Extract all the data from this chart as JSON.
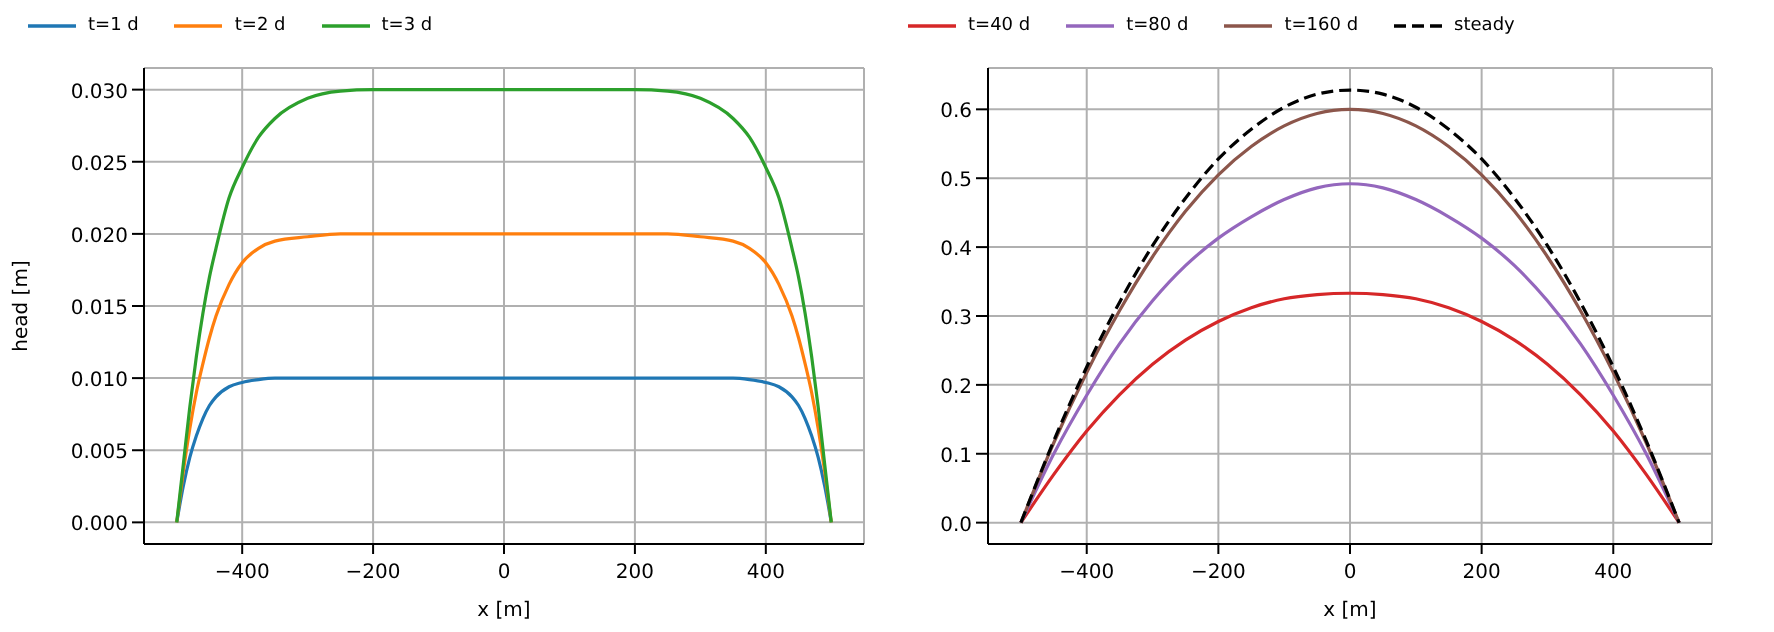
{
  "chart_data": [
    {
      "type": "line",
      "xlabel": "x [m]",
      "ylabel": "head [m]",
      "x": [
        -500,
        -490,
        -480,
        -470,
        -460,
        -450,
        -440,
        -420,
        -400,
        -375,
        -350,
        -300,
        -250,
        -200,
        0,
        200,
        250,
        300,
        350,
        375,
        400,
        420,
        440,
        450,
        460,
        470,
        480,
        490,
        500
      ],
      "series": [
        {
          "name": "t=1 d",
          "color": "#1f77b4",
          "values": [
            0,
            0.0025,
            0.0045,
            0.006,
            0.0072,
            0.0081,
            0.0087,
            0.0094,
            0.0097,
            0.0099,
            0.01,
            0.01,
            0.01,
            0.01,
            0.01,
            0.01,
            0.01,
            0.01,
            0.01,
            0.0099,
            0.0097,
            0.0094,
            0.0087,
            0.0081,
            0.0072,
            0.006,
            0.0045,
            0.0025,
            0
          ]
        },
        {
          "name": "t=2 d",
          "color": "#ff7f0e",
          "values": [
            0,
            0.0035,
            0.0065,
            0.009,
            0.011,
            0.0128,
            0.0143,
            0.0165,
            0.018,
            0.019,
            0.0195,
            0.0198,
            0.02,
            0.02,
            0.02,
            0.02,
            0.02,
            0.0198,
            0.0195,
            0.019,
            0.018,
            0.0165,
            0.0143,
            0.0128,
            0.011,
            0.009,
            0.0065,
            0.0035,
            0
          ]
        },
        {
          "name": "t=3 d",
          "color": "#2ca02c",
          "values": [
            0,
            0.004,
            0.008,
            0.0115,
            0.0145,
            0.017,
            0.019,
            0.0225,
            0.0246,
            0.0267,
            0.028,
            0.0294,
            0.0299,
            0.03,
            0.03,
            0.03,
            0.0299,
            0.0294,
            0.028,
            0.0267,
            0.0246,
            0.0225,
            0.019,
            0.017,
            0.0145,
            0.0115,
            0.008,
            0.004,
            0
          ]
        }
      ],
      "xlim": [
        -550,
        550
      ],
      "xticks": [
        -400,
        -200,
        0,
        200,
        400
      ],
      "ylim": [
        -0.0015,
        0.0315
      ],
      "yticks": [
        {
          "value": 0,
          "label": "0.000"
        },
        0.005,
        {
          "value": 0.01,
          "label": "0.010"
        },
        0.015,
        {
          "value": 0.02,
          "label": "0.020"
        },
        0.025,
        {
          "value": 0.03,
          "label": "0.030"
        }
      ],
      "grid": true,
      "legend": "top left"
    },
    {
      "type": "line",
      "xlabel": "x [m]",
      "x": [
        -500,
        -450,
        -400,
        -350,
        -300,
        -250,
        -200,
        -150,
        -100,
        -50,
        0,
        50,
        100,
        150,
        200,
        250,
        300,
        350,
        400,
        450,
        500
      ],
      "series": [
        {
          "name": "t=40 d",
          "color": "#d62728",
          "values": [
            0,
            0.07,
            0.133,
            0.186,
            0.23,
            0.265,
            0.292,
            0.312,
            0.325,
            0.331,
            0.333,
            0.331,
            0.325,
            0.312,
            0.292,
            0.265,
            0.23,
            0.186,
            0.133,
            0.07,
            0
          ]
        },
        {
          "name": "t=80 d",
          "color": "#9467bd",
          "values": [
            0,
            0.1,
            0.185,
            0.26,
            0.322,
            0.373,
            0.413,
            0.444,
            0.469,
            0.486,
            0.492,
            0.486,
            0.469,
            0.444,
            0.413,
            0.373,
            0.322,
            0.26,
            0.185,
            0.1,
            0
          ]
        },
        {
          "name": "t=160 d",
          "color": "#8c564b",
          "values": [
            0,
            0.116,
            0.218,
            0.308,
            0.386,
            0.452,
            0.505,
            0.546,
            0.576,
            0.594,
            0.6,
            0.594,
            0.576,
            0.546,
            0.505,
            0.452,
            0.386,
            0.308,
            0.218,
            0.116,
            0
          ]
        },
        {
          "name": "steady",
          "color": "#000000",
          "line_style": "dashed",
          "values": [
            0,
            0.119,
            0.226,
            0.32,
            0.402,
            0.471,
            0.528,
            0.571,
            0.603,
            0.622,
            0.628,
            0.622,
            0.603,
            0.571,
            0.528,
            0.471,
            0.402,
            0.32,
            0.226,
            0.119,
            0
          ]
        }
      ],
      "xlim": [
        -550,
        550
      ],
      "xticks": [
        -400,
        -200,
        0,
        200,
        400
      ],
      "ylim": [
        -0.031,
        0.66
      ],
      "yticks": [
        {
          "value": 0,
          "label": "0.0"
        },
        0.1,
        0.2,
        0.3,
        0.4,
        0.5,
        0.6
      ],
      "grid": true,
      "legend": "top"
    }
  ]
}
